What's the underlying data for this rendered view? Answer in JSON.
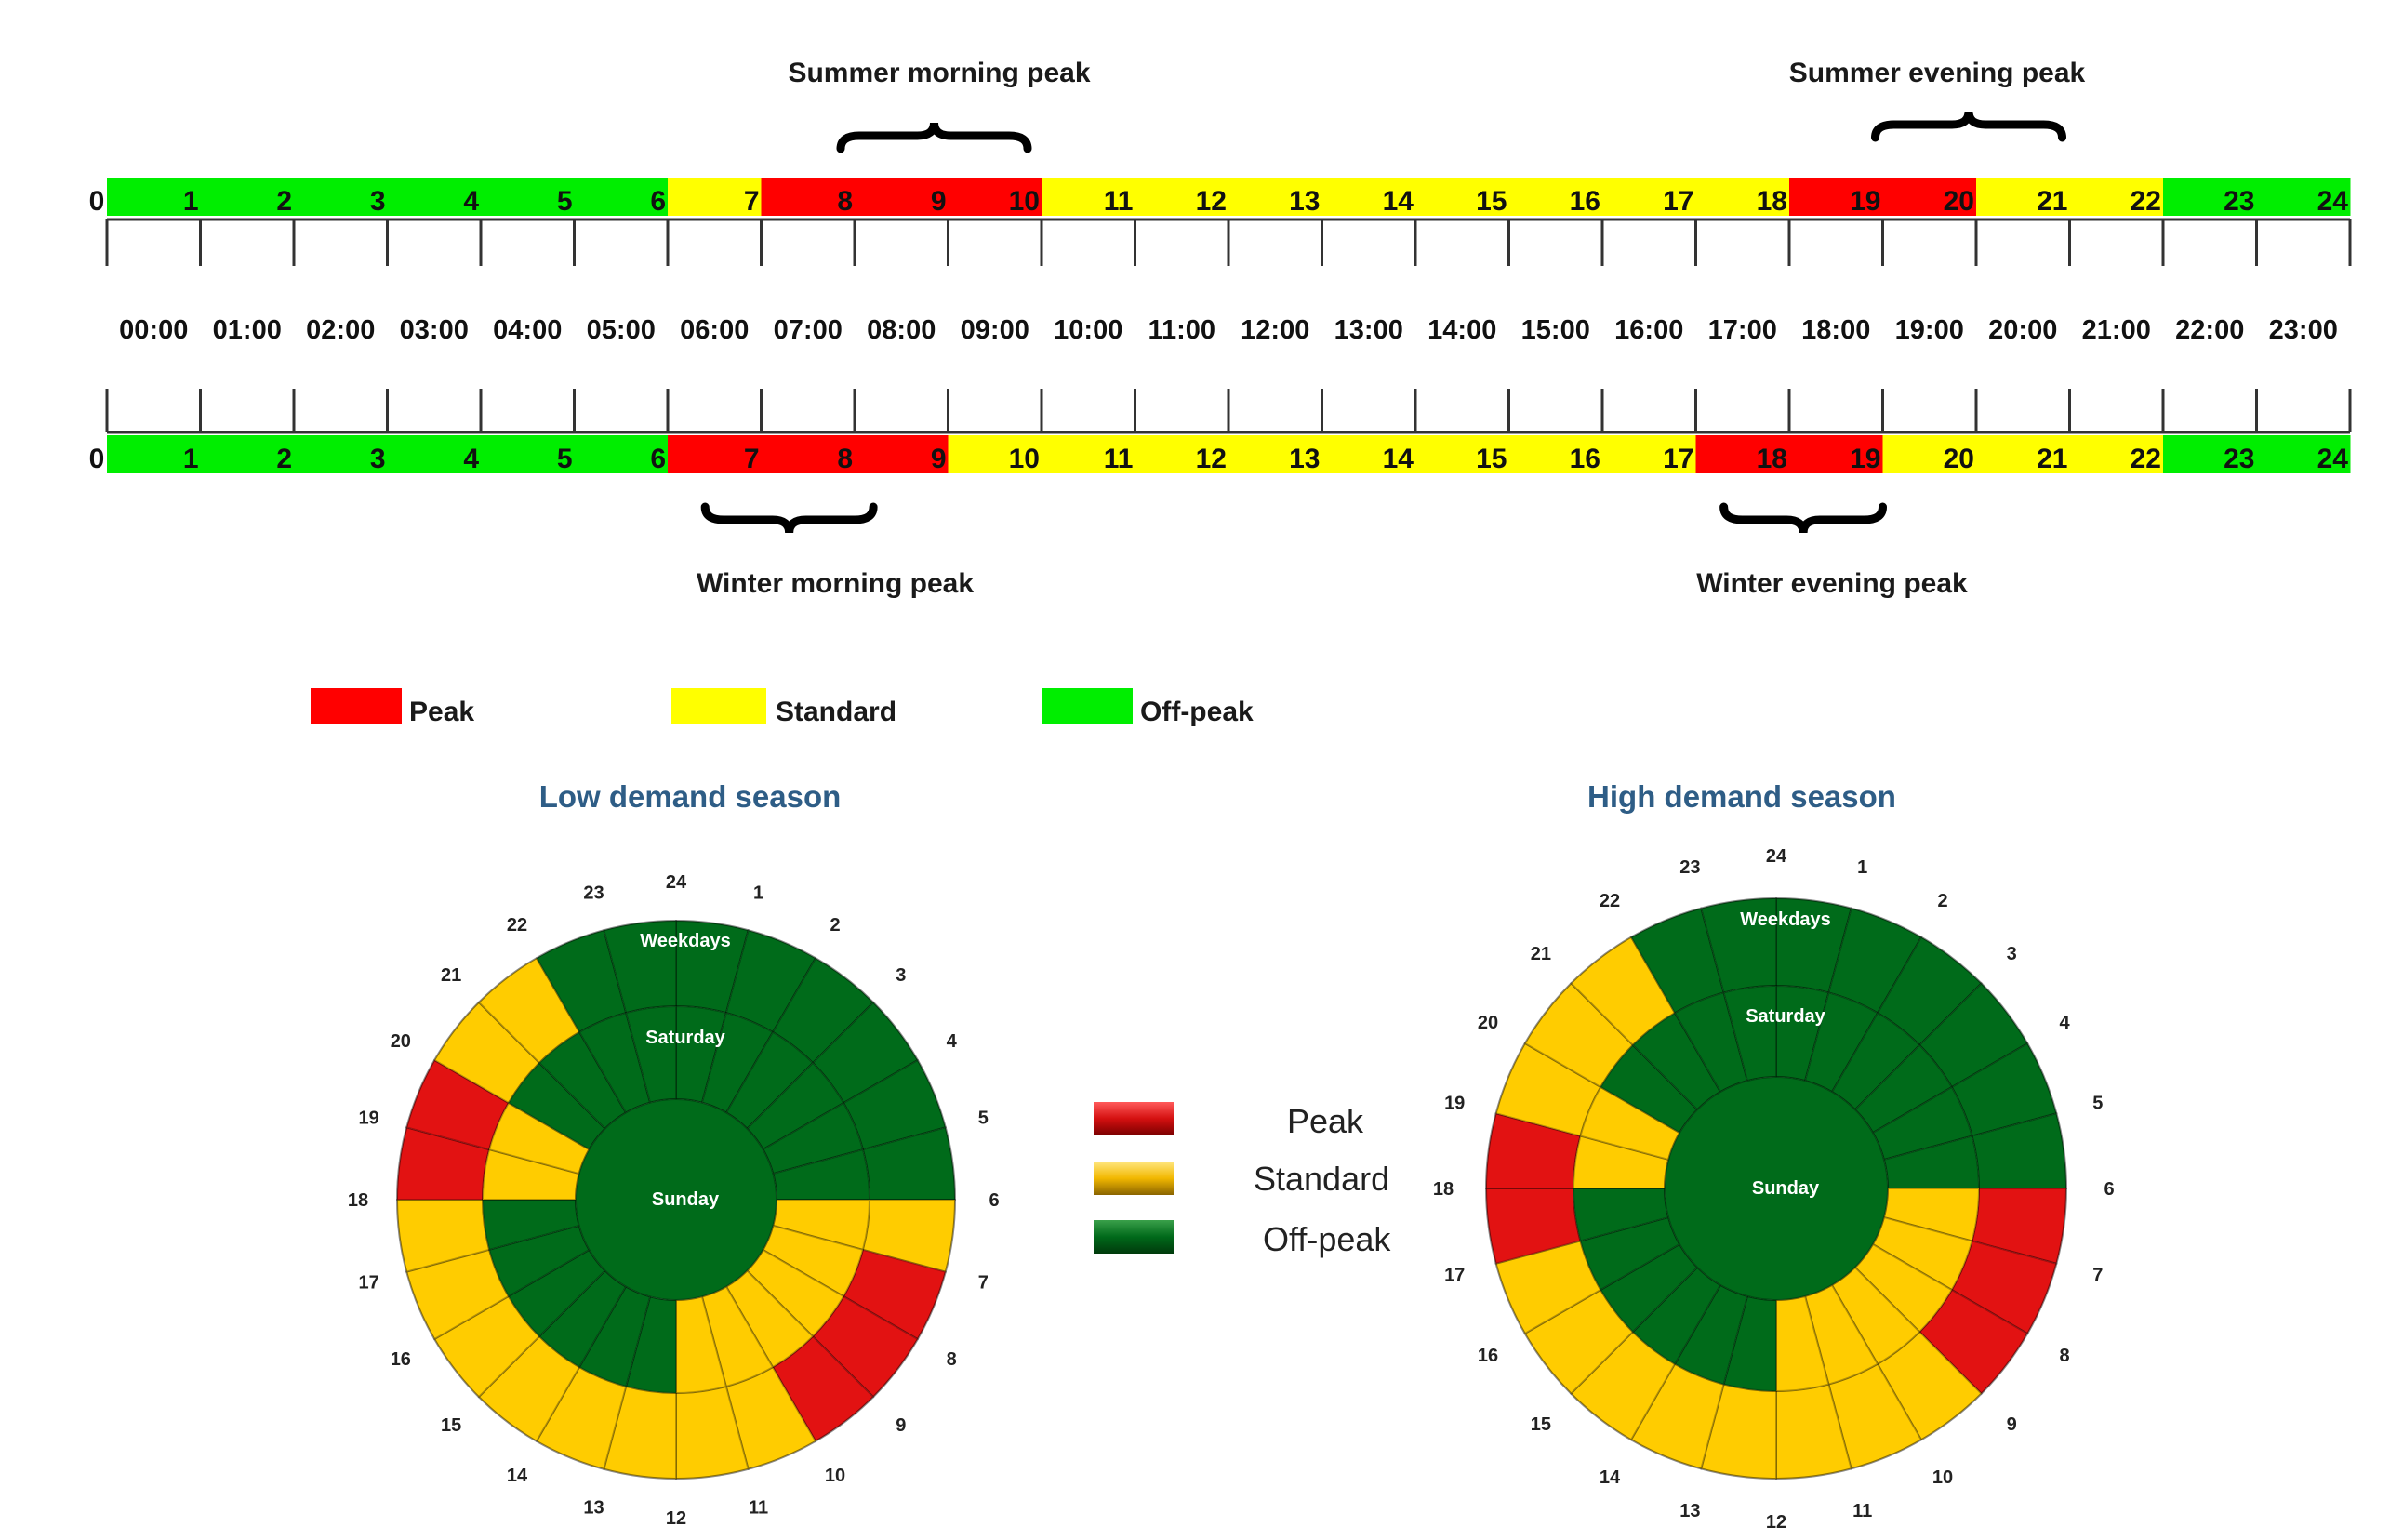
{
  "colors": {
    "peak": "#ff0000",
    "standard": "#ffff00",
    "offpeak": "#00ee00",
    "dial_peak": "#e21212",
    "dial_standard": "#ffcc00",
    "dial_offpeak": "#006b1a",
    "title_blue": "#2e5d86"
  },
  "summer": {
    "morning_label": "Summer morning peak",
    "evening_label": "Summer evening peak",
    "hour_bands": [
      "offpeak",
      "offpeak",
      "offpeak",
      "offpeak",
      "offpeak",
      "offpeak",
      "standard",
      "peak",
      "peak",
      "peak",
      "standard",
      "standard",
      "standard",
      "standard",
      "standard",
      "standard",
      "standard",
      "standard",
      "peak",
      "peak",
      "standard",
      "standard",
      "offpeak",
      "offpeak"
    ],
    "morning_brace_hours": [
      8,
      10
    ],
    "evening_brace_hours": [
      19,
      21
    ]
  },
  "winter": {
    "morning_label": "Winter morning peak",
    "evening_label": "Winter evening peak",
    "hour_bands": [
      "offpeak",
      "offpeak",
      "offpeak",
      "offpeak",
      "offpeak",
      "offpeak",
      "peak",
      "peak",
      "peak",
      "standard",
      "standard",
      "standard",
      "standard",
      "standard",
      "standard",
      "standard",
      "standard",
      "peak",
      "peak",
      "standard",
      "standard",
      "standard",
      "offpeak",
      "offpeak"
    ],
    "morning_brace_hours": [
      6.4,
      8.2
    ],
    "evening_brace_hours": [
      17.3,
      19
    ]
  },
  "hour_numbers": [
    "0",
    "1",
    "2",
    "3",
    "4",
    "5",
    "6",
    "7",
    "8",
    "9",
    "10",
    "11",
    "12",
    "13",
    "14",
    "15",
    "16",
    "17",
    "18",
    "19",
    "20",
    "21",
    "22",
    "23",
    "24"
  ],
  "time_labels": [
    "00:00",
    "01:00",
    "02:00",
    "03:00",
    "04:00",
    "05:00",
    "06:00",
    "07:00",
    "08:00",
    "09:00",
    "10:00",
    "11:00",
    "12:00",
    "13:00",
    "14:00",
    "15:00",
    "16:00",
    "17:00",
    "18:00",
    "19:00",
    "20:00",
    "21:00",
    "22:00",
    "23:00"
  ],
  "legend_top": {
    "peak": "Peak",
    "standard": "Standard",
    "offpeak": "Off-peak"
  },
  "legend_mid": {
    "peak": "Peak",
    "standard": "Standard",
    "offpeak": "Off-peak"
  },
  "dials": [
    {
      "title": "Low demand season",
      "ring_labels": [
        "Weekdays",
        "Saturday",
        "Sunday"
      ],
      "hour_labels": [
        "1",
        "2",
        "3",
        "4",
        "5",
        "6",
        "7",
        "8",
        "9",
        "10",
        "11",
        "12",
        "13",
        "14",
        "15",
        "16",
        "17",
        "18",
        "19",
        "20",
        "21",
        "22",
        "23",
        "24"
      ],
      "weekdays": [
        "offpeak",
        "offpeak",
        "offpeak",
        "offpeak",
        "offpeak",
        "offpeak",
        "standard",
        "peak",
        "peak",
        "peak",
        "standard",
        "standard",
        "standard",
        "standard",
        "standard",
        "standard",
        "standard",
        "standard",
        "peak",
        "peak",
        "standard",
        "standard",
        "offpeak",
        "offpeak"
      ],
      "saturday": [
        "offpeak",
        "offpeak",
        "offpeak",
        "offpeak",
        "offpeak",
        "offpeak",
        "standard",
        "standard",
        "standard",
        "standard",
        "standard",
        "standard",
        "offpeak",
        "offpeak",
        "offpeak",
        "offpeak",
        "offpeak",
        "offpeak",
        "standard",
        "standard",
        "offpeak",
        "offpeak",
        "offpeak",
        "offpeak"
      ],
      "sunday": [
        "offpeak",
        "offpeak",
        "offpeak",
        "offpeak",
        "offpeak",
        "offpeak",
        "offpeak",
        "offpeak",
        "offpeak",
        "offpeak",
        "offpeak",
        "offpeak",
        "offpeak",
        "offpeak",
        "offpeak",
        "offpeak",
        "offpeak",
        "offpeak",
        "offpeak",
        "offpeak",
        "offpeak",
        "offpeak",
        "offpeak",
        "offpeak"
      ]
    },
    {
      "title": "High demand season",
      "ring_labels": [
        "Weekdays",
        "Saturday",
        "Sunday"
      ],
      "hour_labels": [
        "1",
        "2",
        "3",
        "4",
        "5",
        "6",
        "7",
        "8",
        "9",
        "10",
        "11",
        "12",
        "13",
        "14",
        "15",
        "16",
        "17",
        "18",
        "19",
        "20",
        "21",
        "22",
        "23",
        "24"
      ],
      "weekdays": [
        "offpeak",
        "offpeak",
        "offpeak",
        "offpeak",
        "offpeak",
        "offpeak",
        "peak",
        "peak",
        "peak",
        "standard",
        "standard",
        "standard",
        "standard",
        "standard",
        "standard",
        "standard",
        "standard",
        "peak",
        "peak",
        "standard",
        "standard",
        "standard",
        "offpeak",
        "offpeak"
      ],
      "saturday": [
        "offpeak",
        "offpeak",
        "offpeak",
        "offpeak",
        "offpeak",
        "offpeak",
        "standard",
        "standard",
        "standard",
        "standard",
        "standard",
        "standard",
        "offpeak",
        "offpeak",
        "offpeak",
        "offpeak",
        "offpeak",
        "offpeak",
        "standard",
        "standard",
        "offpeak",
        "offpeak",
        "offpeak",
        "offpeak"
      ],
      "sunday": [
        "offpeak",
        "offpeak",
        "offpeak",
        "offpeak",
        "offpeak",
        "offpeak",
        "offpeak",
        "offpeak",
        "offpeak",
        "offpeak",
        "offpeak",
        "offpeak",
        "offpeak",
        "offpeak",
        "offpeak",
        "offpeak",
        "offpeak",
        "offpeak",
        "offpeak",
        "offpeak",
        "offpeak",
        "offpeak",
        "offpeak",
        "offpeak"
      ]
    }
  ]
}
